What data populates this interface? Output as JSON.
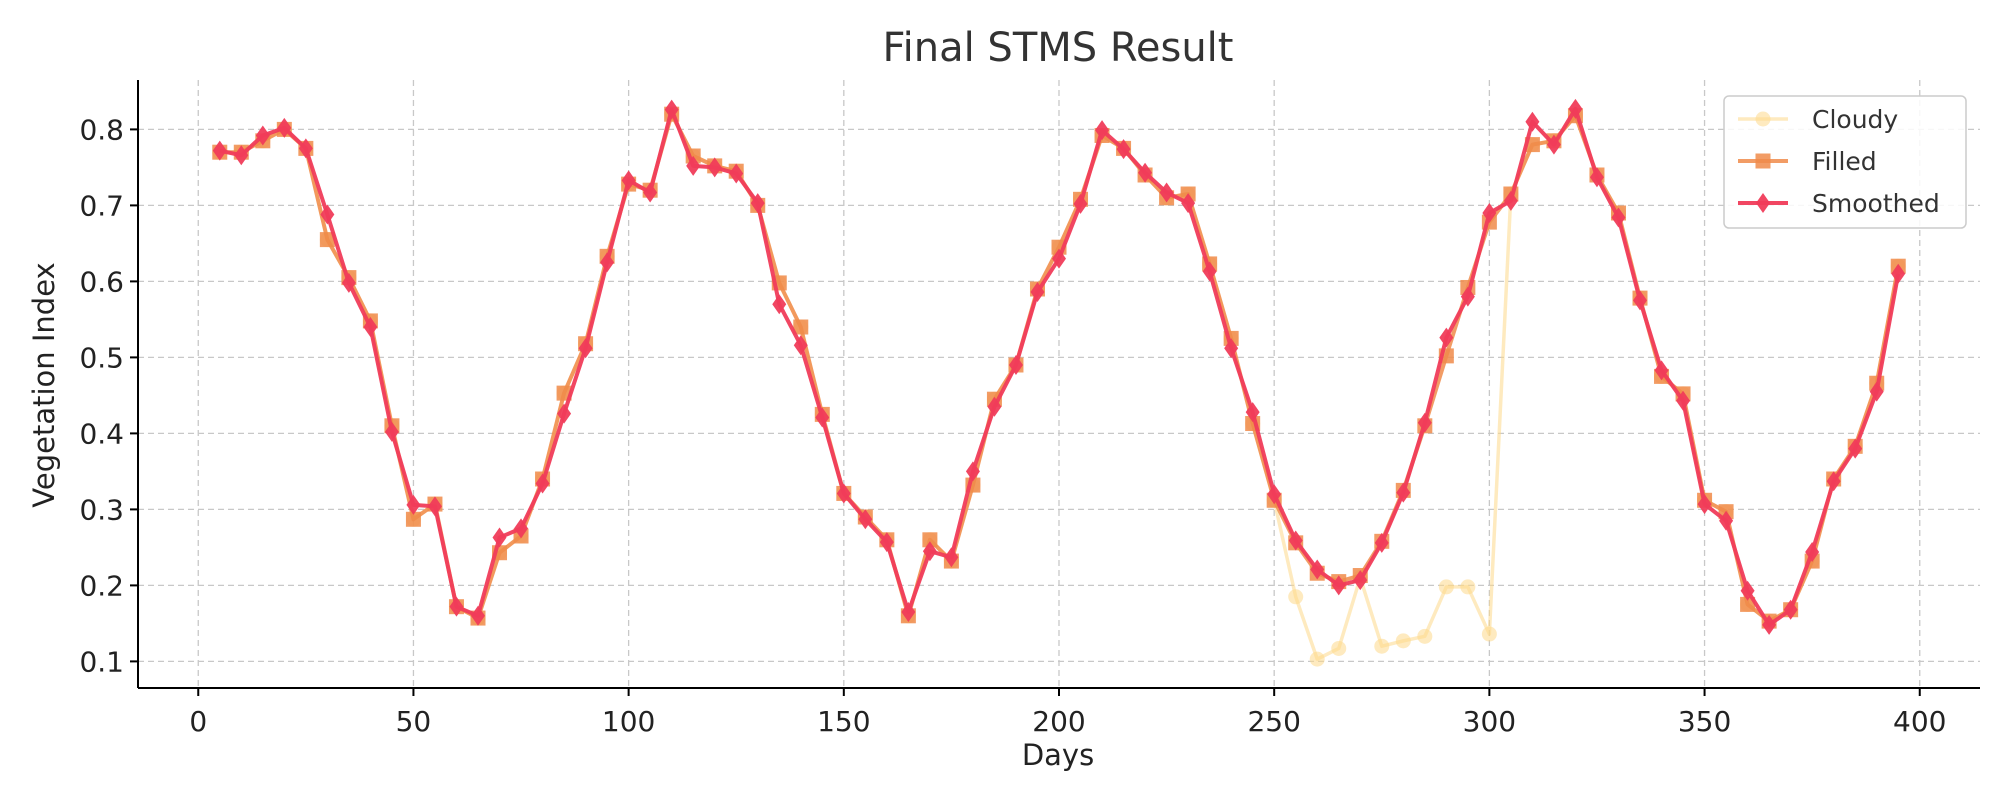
{
  "chart_data": {
    "type": "line",
    "title": "Final STMS Result",
    "xlabel": "Days",
    "ylabel": "Vegetation Index",
    "xlim": [
      -14,
      414
    ],
    "ylim": [
      0.065,
      0.865
    ],
    "xticks": [
      0,
      50,
      100,
      150,
      200,
      250,
      300,
      350,
      400
    ],
    "yticks": [
      0.1,
      0.2,
      0.3,
      0.4,
      0.5,
      0.6,
      0.7,
      0.8
    ],
    "grid": true,
    "legend_position": "top-right",
    "x": [
      5,
      10,
      15,
      20,
      25,
      30,
      35,
      40,
      45,
      50,
      55,
      60,
      65,
      70,
      75,
      80,
      85,
      90,
      95,
      100,
      105,
      110,
      115,
      120,
      125,
      130,
      135,
      140,
      145,
      150,
      155,
      160,
      165,
      170,
      175,
      180,
      185,
      190,
      195,
      200,
      205,
      210,
      215,
      220,
      225,
      230,
      235,
      240,
      245,
      250,
      255,
      260,
      265,
      270,
      275,
      280,
      285,
      290,
      295,
      300,
      305,
      310,
      315,
      320,
      325,
      330,
      335,
      340,
      345,
      350,
      355,
      360,
      365,
      370,
      375,
      380,
      385,
      390,
      395
    ],
    "series": [
      {
        "name": "Cloudy",
        "color": "#fdd88a",
        "marker": "circle",
        "values": [
          0.77,
          0.77,
          0.785,
          0.8,
          0.775,
          0.655,
          0.605,
          0.548,
          0.41,
          0.287,
          0.307,
          0.172,
          0.157,
          0.243,
          0.265,
          0.34,
          0.453,
          0.518,
          0.633,
          0.728,
          0.72,
          0.82,
          0.765,
          0.752,
          0.745,
          0.7,
          0.598,
          0.54,
          0.425,
          0.321,
          0.29,
          0.26,
          0.16,
          0.26,
          0.232,
          0.332,
          0.445,
          0.49,
          0.59,
          0.645,
          0.708,
          0.792,
          0.775,
          0.74,
          0.71,
          0.715,
          0.623,
          0.525,
          0.413,
          0.312,
          0.185,
          0.103,
          0.117,
          0.21,
          0.12,
          0.127,
          0.133,
          0.198,
          0.198,
          0.136,
          0.715,
          0.78,
          0.785,
          0.818,
          0.74,
          0.69,
          0.578,
          0.475,
          0.452,
          0.312,
          0.297,
          0.175,
          0.153,
          0.168,
          0.232,
          0.34,
          0.383,
          0.466,
          0.62
        ]
      },
      {
        "name": "Filled",
        "color": "#f08b4a",
        "marker": "square",
        "values": [
          0.77,
          0.77,
          0.785,
          0.8,
          0.775,
          0.655,
          0.605,
          0.548,
          0.41,
          0.287,
          0.307,
          0.172,
          0.157,
          0.243,
          0.265,
          0.34,
          0.453,
          0.518,
          0.633,
          0.728,
          0.72,
          0.82,
          0.765,
          0.752,
          0.745,
          0.7,
          0.598,
          0.54,
          0.425,
          0.321,
          0.29,
          0.26,
          0.16,
          0.26,
          0.232,
          0.332,
          0.445,
          0.49,
          0.59,
          0.645,
          0.708,
          0.792,
          0.775,
          0.74,
          0.71,
          0.715,
          0.623,
          0.525,
          0.413,
          0.312,
          0.256,
          0.216,
          0.205,
          0.213,
          0.258,
          0.325,
          0.41,
          0.502,
          0.592,
          0.678,
          0.715,
          0.78,
          0.785,
          0.818,
          0.74,
          0.69,
          0.578,
          0.475,
          0.452,
          0.312,
          0.297,
          0.175,
          0.153,
          0.168,
          0.232,
          0.34,
          0.383,
          0.466,
          0.62
        ]
      },
      {
        "name": "Smoothed",
        "color": "#f03c5a",
        "marker": "diamond",
        "values": [
          0.772,
          0.766,
          0.792,
          0.802,
          0.775,
          0.688,
          0.598,
          0.54,
          0.402,
          0.306,
          0.304,
          0.172,
          0.16,
          0.263,
          0.275,
          0.334,
          0.426,
          0.512,
          0.625,
          0.733,
          0.717,
          0.826,
          0.752,
          0.75,
          0.742,
          0.703,
          0.57,
          0.516,
          0.421,
          0.321,
          0.287,
          0.257,
          0.165,
          0.245,
          0.237,
          0.35,
          0.435,
          0.49,
          0.586,
          0.63,
          0.702,
          0.799,
          0.774,
          0.743,
          0.717,
          0.703,
          0.613,
          0.512,
          0.428,
          0.32,
          0.259,
          0.221,
          0.2,
          0.207,
          0.256,
          0.322,
          0.414,
          0.526,
          0.58,
          0.69,
          0.706,
          0.81,
          0.78,
          0.827,
          0.737,
          0.684,
          0.575,
          0.483,
          0.443,
          0.307,
          0.285,
          0.193,
          0.148,
          0.168,
          0.244,
          0.337,
          0.38,
          0.455,
          0.61
        ]
      }
    ]
  }
}
